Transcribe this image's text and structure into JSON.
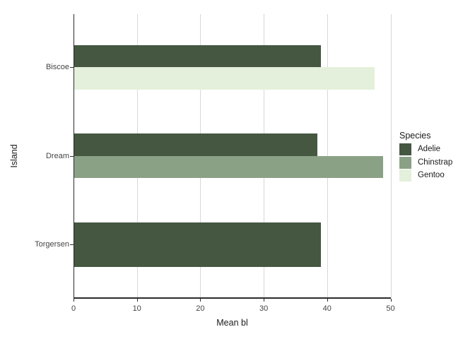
{
  "chart_data": {
    "type": "bar",
    "orientation": "horizontal",
    "title": "",
    "xlabel": "Mean bl",
    "ylabel": "Island",
    "categories": [
      "Biscoe",
      "Dream",
      "Torgersen"
    ],
    "series": [
      {
        "name": "Adelie",
        "color": "#455741",
        "values": [
          39.0,
          38.5,
          39.0
        ]
      },
      {
        "name": "Chinstrap",
        "color": "#8BA186",
        "values": [
          null,
          48.8,
          null
        ]
      },
      {
        "name": "Gentoo",
        "color": "#E4F0DB",
        "values": [
          47.5,
          null,
          null
        ]
      }
    ],
    "x_ticks": [
      "0",
      "10",
      "20",
      "30",
      "40",
      "50"
    ],
    "xlim": [
      0,
      50
    ],
    "bar_width": 0.5,
    "grid": "vertical major gridlines only",
    "legend": {
      "title": "Species",
      "position": "right"
    },
    "colors": {
      "background": "#FFFFFF",
      "gridline": "#D8D8D8",
      "axis_line": "#2B2B2B",
      "tick_text": "#444444",
      "title_text": "#1A1A1A"
    }
  }
}
